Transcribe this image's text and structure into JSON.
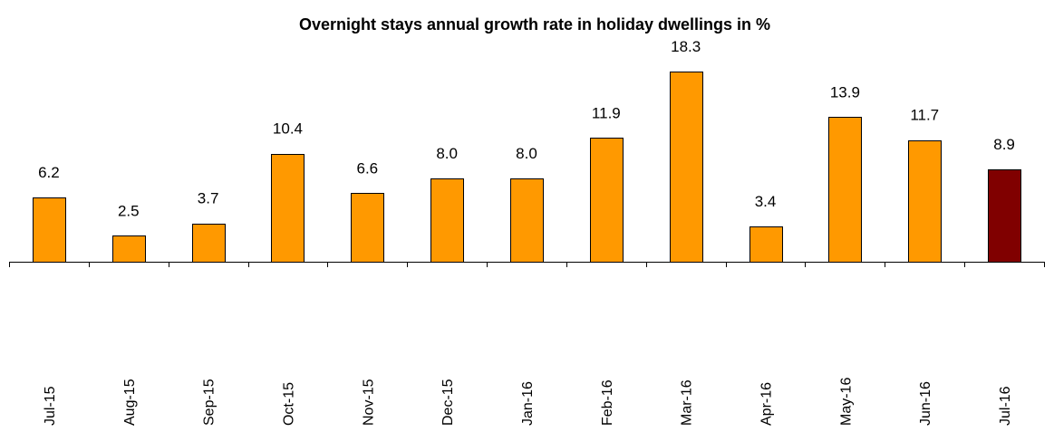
{
  "chart_data": {
    "type": "bar",
    "title": "Overnight stays annual growth rate in holiday dwellings in %",
    "categories": [
      "Jul-15",
      "Aug-15",
      "Sep-15",
      "Oct-15",
      "Nov-15",
      "Dec-15",
      "Jan-16",
      "Feb-16",
      "Mar-16",
      "Apr-16",
      "May-16",
      "Jun-16",
      "Jul-16"
    ],
    "values": [
      6.2,
      2.5,
      3.7,
      10.4,
      6.6,
      8.0,
      8.0,
      11.9,
      18.3,
      3.4,
      13.9,
      11.7,
      8.9
    ],
    "value_labels": [
      "6.2",
      "2.5",
      "3.7",
      "10.4",
      "6.6",
      "8.0",
      "8.0",
      "11.9",
      "18.3",
      "3.4",
      "13.9",
      "11.7",
      "8.9"
    ],
    "colors": {
      "default_bar": "#FF9900",
      "highlight_bar": "#800000"
    },
    "highlight_index": 12,
    "xlabel": "",
    "ylabel": "",
    "ylim": [
      0,
      18.3
    ],
    "grid": false,
    "legend": "none",
    "data_labels": true,
    "tick_label_rotation": "vertical"
  }
}
